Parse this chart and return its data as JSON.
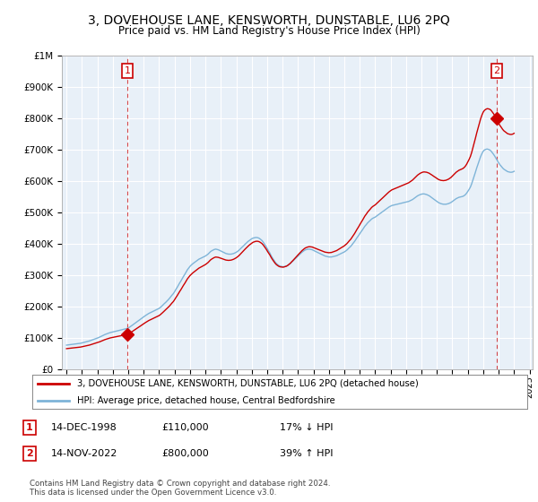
{
  "title": "3, DOVEHOUSE LANE, KENSWORTH, DUNSTABLE, LU6 2PQ",
  "subtitle": "Price paid vs. HM Land Registry's House Price Index (HPI)",
  "background_color": "#ffffff",
  "chart_bg_color": "#e8f0f8",
  "grid_color": "#ffffff",
  "hpi_color": "#7eb4d8",
  "price_color": "#cc0000",
  "ylim": [
    0,
    1000000
  ],
  "yticks": [
    0,
    100000,
    200000,
    300000,
    400000,
    500000,
    600000,
    700000,
    800000,
    900000,
    1000000
  ],
  "ytick_labels": [
    "£0",
    "£100K",
    "£200K",
    "£300K",
    "£400K",
    "£500K",
    "£600K",
    "£700K",
    "£800K",
    "£900K",
    "£1M"
  ],
  "transaction1_x": 1998.95,
  "transaction1_y": 110000,
  "transaction2_x": 2022.87,
  "transaction2_y": 800000,
  "annotation1_date": "14-DEC-1998",
  "annotation1_price": "£110,000",
  "annotation1_hpi": "17% ↓ HPI",
  "annotation2_date": "14-NOV-2022",
  "annotation2_price": "£800,000",
  "annotation2_hpi": "39% ↑ HPI",
  "legend_line1": "3, DOVEHOUSE LANE, KENSWORTH, DUNSTABLE, LU6 2PQ (detached house)",
  "legend_line2": "HPI: Average price, detached house, Central Bedfordshire",
  "footer": "Contains HM Land Registry data © Crown copyright and database right 2024.\nThis data is licensed under the Open Government Licence v3.0.",
  "hpi_data_x": [
    1995.0,
    1995.08,
    1995.17,
    1995.25,
    1995.33,
    1995.42,
    1995.5,
    1995.58,
    1995.67,
    1995.75,
    1995.83,
    1995.92,
    1996.0,
    1996.08,
    1996.17,
    1996.25,
    1996.33,
    1996.42,
    1996.5,
    1996.58,
    1996.67,
    1996.75,
    1996.83,
    1996.92,
    1997.0,
    1997.08,
    1997.17,
    1997.25,
    1997.33,
    1997.42,
    1997.5,
    1997.58,
    1997.67,
    1997.75,
    1997.83,
    1997.92,
    1998.0,
    1998.08,
    1998.17,
    1998.25,
    1998.33,
    1998.42,
    1998.5,
    1998.58,
    1998.67,
    1998.75,
    1998.83,
    1998.92,
    1999.0,
    1999.08,
    1999.17,
    1999.25,
    1999.33,
    1999.42,
    1999.5,
    1999.58,
    1999.67,
    1999.75,
    1999.83,
    1999.92,
    2000.0,
    2000.08,
    2000.17,
    2000.25,
    2000.33,
    2000.42,
    2000.5,
    2000.58,
    2000.67,
    2000.75,
    2000.83,
    2000.92,
    2001.0,
    2001.08,
    2001.17,
    2001.25,
    2001.33,
    2001.42,
    2001.5,
    2001.58,
    2001.67,
    2001.75,
    2001.83,
    2001.92,
    2002.0,
    2002.08,
    2002.17,
    2002.25,
    2002.33,
    2002.42,
    2002.5,
    2002.58,
    2002.67,
    2002.75,
    2002.83,
    2002.92,
    2003.0,
    2003.08,
    2003.17,
    2003.25,
    2003.33,
    2003.42,
    2003.5,
    2003.58,
    2003.67,
    2003.75,
    2003.83,
    2003.92,
    2004.0,
    2004.08,
    2004.17,
    2004.25,
    2004.33,
    2004.42,
    2004.5,
    2004.58,
    2004.67,
    2004.75,
    2004.83,
    2004.92,
    2005.0,
    2005.08,
    2005.17,
    2005.25,
    2005.33,
    2005.42,
    2005.5,
    2005.58,
    2005.67,
    2005.75,
    2005.83,
    2005.92,
    2006.0,
    2006.08,
    2006.17,
    2006.25,
    2006.33,
    2006.42,
    2006.5,
    2006.58,
    2006.67,
    2006.75,
    2006.83,
    2006.92,
    2007.0,
    2007.08,
    2007.17,
    2007.25,
    2007.33,
    2007.42,
    2007.5,
    2007.58,
    2007.67,
    2007.75,
    2007.83,
    2007.92,
    2008.0,
    2008.08,
    2008.17,
    2008.25,
    2008.33,
    2008.42,
    2008.5,
    2008.58,
    2008.67,
    2008.75,
    2008.83,
    2008.92,
    2009.0,
    2009.08,
    2009.17,
    2009.25,
    2009.33,
    2009.42,
    2009.5,
    2009.58,
    2009.67,
    2009.75,
    2009.83,
    2009.92,
    2010.0,
    2010.08,
    2010.17,
    2010.25,
    2010.33,
    2010.42,
    2010.5,
    2010.58,
    2010.67,
    2010.75,
    2010.83,
    2010.92,
    2011.0,
    2011.08,
    2011.17,
    2011.25,
    2011.33,
    2011.42,
    2011.5,
    2011.58,
    2011.67,
    2011.75,
    2011.83,
    2011.92,
    2012.0,
    2012.08,
    2012.17,
    2012.25,
    2012.33,
    2012.42,
    2012.5,
    2012.58,
    2012.67,
    2012.75,
    2012.83,
    2012.92,
    2013.0,
    2013.08,
    2013.17,
    2013.25,
    2013.33,
    2013.42,
    2013.5,
    2013.58,
    2013.67,
    2013.75,
    2013.83,
    2013.92,
    2014.0,
    2014.08,
    2014.17,
    2014.25,
    2014.33,
    2014.42,
    2014.5,
    2014.58,
    2014.67,
    2014.75,
    2014.83,
    2014.92,
    2015.0,
    2015.08,
    2015.17,
    2015.25,
    2015.33,
    2015.42,
    2015.5,
    2015.58,
    2015.67,
    2015.75,
    2015.83,
    2015.92,
    2016.0,
    2016.08,
    2016.17,
    2016.25,
    2016.33,
    2016.42,
    2016.5,
    2016.58,
    2016.67,
    2016.75,
    2016.83,
    2016.92,
    2017.0,
    2017.08,
    2017.17,
    2017.25,
    2017.33,
    2017.42,
    2017.5,
    2017.58,
    2017.67,
    2017.75,
    2017.83,
    2017.92,
    2018.0,
    2018.08,
    2018.17,
    2018.25,
    2018.33,
    2018.42,
    2018.5,
    2018.58,
    2018.67,
    2018.75,
    2018.83,
    2018.92,
    2019.0,
    2019.08,
    2019.17,
    2019.25,
    2019.33,
    2019.42,
    2019.5,
    2019.58,
    2019.67,
    2019.75,
    2019.83,
    2019.92,
    2020.0,
    2020.08,
    2020.17,
    2020.25,
    2020.33,
    2020.42,
    2020.5,
    2020.58,
    2020.67,
    2020.75,
    2020.83,
    2020.92,
    2021.0,
    2021.08,
    2021.17,
    2021.25,
    2021.33,
    2021.42,
    2021.5,
    2021.58,
    2021.67,
    2021.75,
    2021.83,
    2021.92,
    2022.0,
    2022.08,
    2022.17,
    2022.25,
    2022.33,
    2022.42,
    2022.5,
    2022.58,
    2022.67,
    2022.75,
    2022.83,
    2022.92,
    2023.0,
    2023.08,
    2023.17,
    2023.25,
    2023.33,
    2023.42,
    2023.5,
    2023.58,
    2023.67,
    2023.75,
    2023.83,
    2023.92,
    2024.0
  ],
  "hpi_data_y": [
    76000,
    76500,
    77000,
    77500,
    78000,
    78500,
    79000,
    79500,
    80000,
    80500,
    81000,
    82000,
    83000,
    84000,
    85000,
    86000,
    87000,
    88000,
    89500,
    91000,
    92500,
    94000,
    95500,
    97000,
    98500,
    100000,
    102000,
    104000,
    106000,
    108000,
    110000,
    111500,
    113000,
    114500,
    116000,
    117000,
    118000,
    119000,
    120000,
    121000,
    122000,
    123000,
    124000,
    125000,
    126000,
    127000,
    128000,
    129000,
    131000,
    133000,
    136000,
    139000,
    142000,
    145000,
    148000,
    151000,
    154000,
    157000,
    160000,
    163000,
    166000,
    169000,
    172000,
    175000,
    177000,
    179000,
    181000,
    183000,
    185000,
    187000,
    189000,
    191000,
    193000,
    196000,
    200000,
    204000,
    208000,
    212000,
    216000,
    220000,
    225000,
    230000,
    235000,
    240000,
    246000,
    253000,
    260000,
    267000,
    274000,
    281000,
    288000,
    295000,
    302000,
    309000,
    316000,
    322000,
    327000,
    331000,
    335000,
    338000,
    341000,
    344000,
    347000,
    350000,
    352000,
    354000,
    356000,
    358000,
    360000,
    363000,
    366000,
    370000,
    374000,
    377000,
    379000,
    381000,
    382000,
    381000,
    380000,
    378000,
    376000,
    374000,
    372000,
    370000,
    368000,
    367000,
    366000,
    366000,
    366000,
    367000,
    368000,
    370000,
    372000,
    375000,
    378000,
    382000,
    386000,
    390000,
    394000,
    398000,
    402000,
    406000,
    409000,
    412000,
    415000,
    417000,
    418000,
    419000,
    419000,
    418000,
    416000,
    413000,
    409000,
    404000,
    398000,
    391000,
    384000,
    377000,
    370000,
    362000,
    355000,
    348000,
    342000,
    337000,
    333000,
    330000,
    328000,
    327000,
    326000,
    326000,
    327000,
    328000,
    330000,
    333000,
    336000,
    340000,
    344000,
    348000,
    352000,
    356000,
    360000,
    364000,
    368000,
    372000,
    375000,
    378000,
    380000,
    381000,
    382000,
    382000,
    381000,
    380000,
    378000,
    376000,
    374000,
    372000,
    370000,
    368000,
    366000,
    364000,
    362000,
    360000,
    359000,
    358000,
    357000,
    357000,
    357000,
    358000,
    359000,
    360000,
    361000,
    363000,
    365000,
    367000,
    369000,
    371000,
    373000,
    376000,
    379000,
    383000,
    387000,
    391000,
    396000,
    401000,
    407000,
    413000,
    419000,
    425000,
    431000,
    437000,
    443000,
    449000,
    455000,
    460000,
    465000,
    469000,
    473000,
    477000,
    480000,
    482000,
    484000,
    487000,
    490000,
    493000,
    496000,
    499000,
    502000,
    505000,
    508000,
    511000,
    514000,
    517000,
    519000,
    521000,
    522000,
    523000,
    524000,
    525000,
    526000,
    527000,
    528000,
    529000,
    530000,
    531000,
    532000,
    533000,
    534000,
    536000,
    538000,
    540000,
    543000,
    546000,
    549000,
    552000,
    554000,
    556000,
    557000,
    558000,
    558000,
    557000,
    556000,
    554000,
    552000,
    549000,
    546000,
    543000,
    540000,
    537000,
    534000,
    531000,
    529000,
    527000,
    526000,
    525000,
    525000,
    525000,
    526000,
    527000,
    529000,
    531000,
    534000,
    537000,
    540000,
    543000,
    545000,
    547000,
    548000,
    549000,
    550000,
    552000,
    555000,
    560000,
    566000,
    572000,
    580000,
    590000,
    602000,
    615000,
    628000,
    641000,
    654000,
    666000,
    677000,
    687000,
    694000,
    698000,
    700000,
    701000,
    700000,
    698000,
    695000,
    690000,
    684000,
    678000,
    671000,
    664000,
    657000,
    651000,
    646000,
    641000,
    637000,
    634000,
    631000,
    629000,
    628000,
    627000,
    627000,
    628000,
    630000
  ],
  "xlim_left": 1994.7,
  "xlim_right": 2025.2,
  "xticks": [
    1995,
    1996,
    1997,
    1998,
    1999,
    2000,
    2001,
    2002,
    2003,
    2004,
    2005,
    2006,
    2007,
    2008,
    2009,
    2010,
    2011,
    2012,
    2013,
    2014,
    2015,
    2016,
    2017,
    2018,
    2019,
    2020,
    2021,
    2022,
    2023,
    2024,
    2025
  ],
  "dashed_vline1_x": 1998.95,
  "dashed_vline2_x": 2022.87
}
